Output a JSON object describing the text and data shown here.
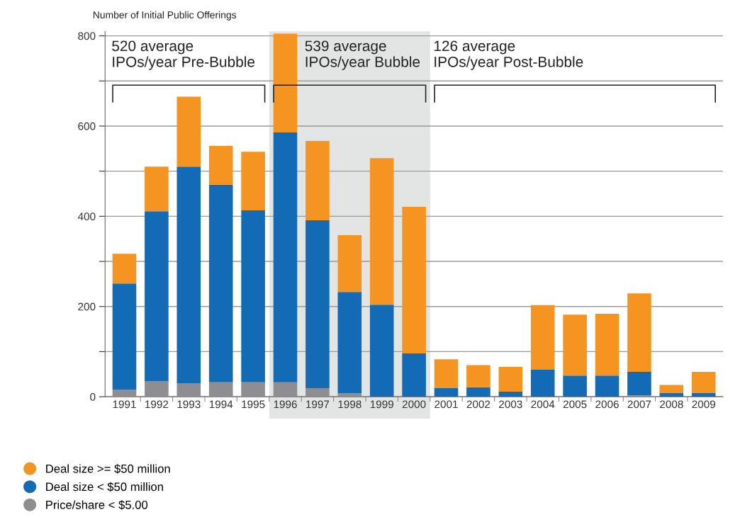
{
  "chart_data": {
    "type": "bar",
    "stacked": true,
    "ylabel": "Number of Initial Public Offerings",
    "categories": [
      "1991",
      "1992",
      "1993",
      "1994",
      "1995",
      "1996",
      "1997",
      "1998",
      "1999",
      "2000",
      "2001",
      "2002",
      "2003",
      "2004",
      "2005",
      "2006",
      "2007",
      "2008",
      "2009"
    ],
    "series": [
      {
        "name": "Price/share < $5.00",
        "color": "#8d8d92",
        "values": [
          15,
          34,
          30,
          32,
          32,
          32,
          19,
          8,
          null,
          null,
          0,
          0,
          0,
          0,
          0,
          0,
          3,
          0,
          0
        ]
      },
      {
        "name": "Deal size < $50 million",
        "color": "#136bb5",
        "values": [
          236,
          377,
          480,
          438,
          381,
          554,
          372,
          224,
          204,
          96,
          19,
          21,
          11,
          60,
          47,
          47,
          52,
          9,
          9
        ]
      },
      {
        "name": "Deal size >= $50 million",
        "color": "#f59421",
        "values": [
          66,
          99,
          155,
          86,
          130,
          219,
          176,
          126,
          325,
          325,
          64,
          49,
          55,
          143,
          135,
          137,
          174,
          17,
          46
        ]
      }
    ],
    "ylim": [
      0,
      810
    ],
    "yticks": [
      0,
      {
        "value": 100,
        "label": null
      },
      200,
      {
        "value": 300,
        "label": null
      },
      400,
      {
        "value": 500,
        "label": null
      },
      600,
      {
        "value": 700,
        "label": null
      },
      800
    ],
    "grid": "y",
    "legend": "bottom",
    "bands": [
      {
        "axis": "x",
        "from": "1996",
        "to": "2000",
        "color": "#e3e4e4"
      }
    ],
    "annotations": [
      "520 average\nIPOs/year Pre-Bubble",
      "539 average\nIPOs/year Bubble",
      "126 average\nIPOs/year Post-Bubble"
    ]
  }
}
